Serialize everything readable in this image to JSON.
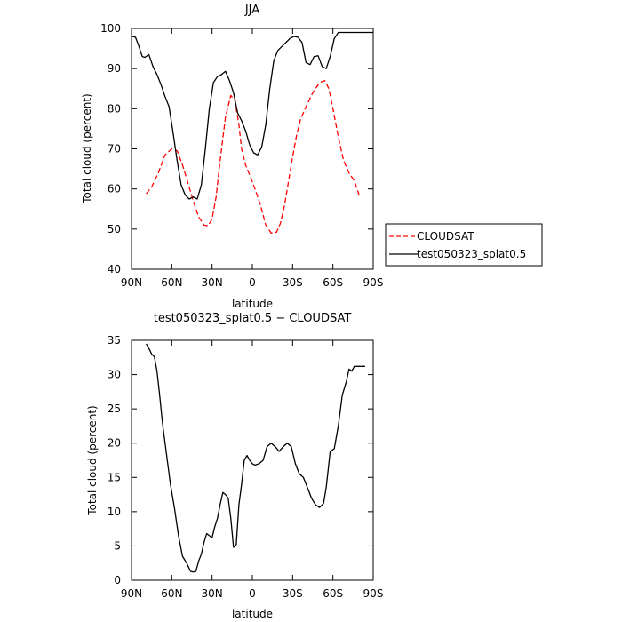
{
  "chart_data": [
    {
      "type": "line",
      "title": "JJA",
      "xlabel": "latitude",
      "ylabel": "Total cloud (percent)",
      "xlim": [
        90,
        -90
      ],
      "ylim": [
        40,
        100
      ],
      "x_ticks": [
        90,
        60,
        30,
        0,
        -30,
        -60,
        -90
      ],
      "x_tick_labels": [
        "90N",
        "60N",
        "30N",
        "0",
        "30S",
        "60S",
        "90S"
      ],
      "y_ticks": [
        40,
        50,
        60,
        70,
        80,
        90,
        100
      ],
      "y_tick_labels": [
        "40",
        "50",
        "60",
        "70",
        "80",
        "90",
        "100"
      ],
      "legend": "outside-right",
      "series": [
        {
          "name": "CLOUDSAT",
          "color": "#ff0000",
          "dash": "dashed",
          "x": [
            79,
            75,
            70,
            65,
            60,
            56,
            52,
            48,
            44,
            40,
            36,
            33,
            30,
            27,
            24,
            20,
            16,
            13,
            10,
            8,
            5,
            2,
            -2,
            -6,
            -10,
            -14,
            -18,
            -21,
            -24,
            -27,
            -30,
            -33,
            -36,
            -40,
            -45,
            -50,
            -54,
            -57,
            -60,
            -64,
            -68,
            -72,
            -76,
            -80
          ],
          "y": [
            58.8,
            60.5,
            64,
            68.5,
            70,
            69.5,
            66,
            61.5,
            57,
            53,
            51,
            50.8,
            52.5,
            58,
            67,
            78,
            83.3,
            82,
            76,
            70,
            66,
            63.5,
            60,
            56,
            51,
            49,
            49.2,
            51.5,
            56,
            62,
            68,
            73.5,
            77.5,
            80.5,
            84,
            86.5,
            87,
            85,
            80,
            73,
            67,
            64,
            62,
            58
          ]
        },
        {
          "name": "test050323_splat0.5",
          "color": "#000000",
          "dash": "solid",
          "x": [
            90,
            87,
            85,
            82,
            80,
            77,
            74,
            71,
            68,
            65,
            62,
            59,
            56,
            53,
            50,
            47,
            44,
            41,
            38,
            35,
            32,
            29,
            26,
            23,
            20,
            17,
            14,
            11,
            8,
            5,
            2,
            -1,
            -4,
            -7,
            -10,
            -13,
            -16,
            -19,
            -22,
            -25,
            -28,
            -31,
            -34,
            -37,
            -40,
            -43,
            -46,
            -49,
            -52,
            -55,
            -58,
            -61,
            -64,
            -67,
            -70,
            -73,
            -76,
            -78,
            -80,
            -83,
            -85,
            -87,
            -90
          ],
          "y": [
            98,
            97.8,
            96,
            93,
            92.8,
            93.5,
            90.5,
            88.5,
            86,
            83,
            80.5,
            74,
            67,
            61,
            58.5,
            57.5,
            58,
            57.5,
            61,
            70,
            80,
            86.5,
            88,
            88.5,
            89.3,
            87,
            84,
            79,
            77,
            74.5,
            71,
            69,
            68.5,
            70.5,
            76,
            85,
            92,
            94.5,
            95.5,
            96.5,
            97.5,
            98,
            97.8,
            96.5,
            91.5,
            91,
            93,
            93.2,
            90.5,
            90,
            93,
            97.5,
            99,
            99,
            99,
            99,
            99,
            99,
            99,
            99,
            99,
            99,
            99
          ]
        }
      ]
    },
    {
      "type": "line",
      "title": "test050323_splat0.5 − CLOUDSAT",
      "xlabel": "latitude",
      "ylabel": "Total cloud (percent)",
      "xlim": [
        90,
        -90
      ],
      "ylim": [
        0,
        35
      ],
      "x_ticks": [
        90,
        60,
        30,
        0,
        -30,
        -60,
        -90
      ],
      "x_tick_labels": [
        "90N",
        "60N",
        "30N",
        "0",
        "30S",
        "60S",
        "90S"
      ],
      "y_ticks": [
        0,
        5,
        10,
        15,
        20,
        25,
        30,
        35
      ],
      "y_tick_labels": [
        "0",
        "5",
        "10",
        "15",
        "20",
        "25",
        "30",
        "35"
      ],
      "series": [
        {
          "color": "#000000",
          "dash": "solid",
          "x": [
            79,
            77,
            75,
            73,
            71,
            69,
            67,
            64,
            61,
            58,
            55,
            52,
            49,
            46,
            44,
            42,
            40,
            38,
            36,
            34,
            32,
            30,
            28,
            26,
            24,
            22,
            20,
            18,
            16,
            14,
            12,
            10,
            8,
            6,
            4,
            2,
            0,
            -2,
            -5,
            -8,
            -11,
            -14,
            -17,
            -20,
            -23,
            -26,
            -29,
            -32,
            -35,
            -38,
            -41,
            -44,
            -47,
            -50,
            -53,
            -55,
            -58,
            -61,
            -64,
            -67,
            -70,
            -72,
            -74,
            -76,
            -78,
            -80,
            -82,
            -84
          ],
          "y": [
            34.5,
            33.8,
            33,
            32.6,
            30.5,
            27,
            23,
            18.5,
            14,
            10.5,
            6.5,
            3.5,
            2.5,
            1.3,
            1.2,
            1.3,
            2.8,
            3.8,
            5.5,
            6.8,
            6.5,
            6.2,
            7.8,
            9,
            11,
            12.8,
            12.5,
            12,
            9,
            4.8,
            5.2,
            11,
            14,
            17.5,
            18.2,
            17.5,
            17,
            16.8,
            17,
            17.5,
            19.5,
            20,
            19.5,
            18.8,
            19.5,
            20,
            19.5,
            17,
            15.5,
            15,
            13.5,
            12,
            11,
            10.6,
            11.2,
            13.5,
            18.8,
            19.2,
            22.5,
            27,
            29,
            30.8,
            30.5,
            31.2,
            31.2,
            31.2,
            31.2,
            31.2
          ]
        }
      ]
    }
  ]
}
